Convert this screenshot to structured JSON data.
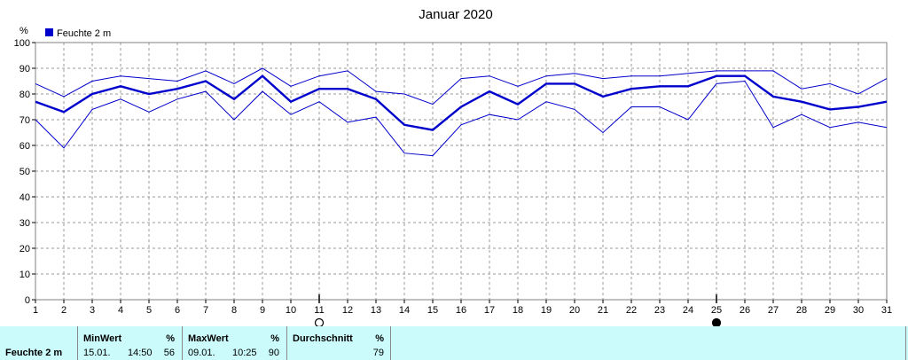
{
  "chart_data": {
    "type": "line",
    "title": "Januar 2020",
    "legend": {
      "label": "Feuchte 2 m",
      "color": "#0000cc",
      "placement": "top-left"
    },
    "y_unit": "%",
    "ylim": [
      0,
      100
    ],
    "y_ticks": [
      "0",
      "10",
      "20",
      "30",
      "40",
      "50",
      "60",
      "70",
      "80",
      "90",
      "100"
    ],
    "x_ticks": [
      "1",
      "2",
      "3",
      "4",
      "5",
      "6",
      "7",
      "8",
      "9",
      "10",
      "11",
      "12",
      "13",
      "14",
      "15",
      "16",
      "17",
      "18",
      "19",
      "20",
      "21",
      "22",
      "23",
      "24",
      "25",
      "26",
      "27",
      "28",
      "29",
      "30",
      "31"
    ],
    "grid": true,
    "line_color": "#0000cc",
    "series": [
      {
        "role": "max",
        "values": [
          84,
          79,
          85,
          87,
          86,
          85,
          89,
          84,
          90,
          83,
          87,
          89,
          81,
          80,
          76,
          86,
          87,
          83,
          87,
          88,
          86,
          87,
          87,
          88,
          89,
          89,
          89,
          82,
          84,
          80,
          86
        ]
      },
      {
        "role": "mean",
        "values": [
          77,
          73,
          80,
          83,
          80,
          82,
          85,
          78,
          87,
          77,
          82,
          82,
          78,
          68,
          66,
          75,
          81,
          76,
          84,
          84,
          79,
          82,
          83,
          83,
          87,
          87,
          79,
          77,
          74,
          75,
          77
        ]
      },
      {
        "role": "min",
        "values": [
          70,
          59,
          74,
          78,
          73,
          78,
          81,
          70,
          81,
          72,
          77,
          69,
          71,
          57,
          56,
          68,
          72,
          70,
          77,
          74,
          65,
          75,
          75,
          70,
          84,
          85,
          67,
          72,
          67,
          69,
          67
        ]
      }
    ],
    "moon_phases": [
      {
        "day": 11,
        "phase": "new-moon-outline"
      },
      {
        "day": 25,
        "phase": "full-moon-filled"
      }
    ]
  },
  "footer": {
    "row_label": "Feuchte  2 m",
    "min": {
      "header": "MinWert",
      "unit": "%",
      "date": "15.01.",
      "time": "14:50",
      "value": "56"
    },
    "max": {
      "header": "MaxWert",
      "unit": "%",
      "date": "09.01.",
      "time": "10:25",
      "value": "90"
    },
    "avg": {
      "header": "Durchschnitt",
      "unit": "%",
      "value": "79"
    }
  }
}
